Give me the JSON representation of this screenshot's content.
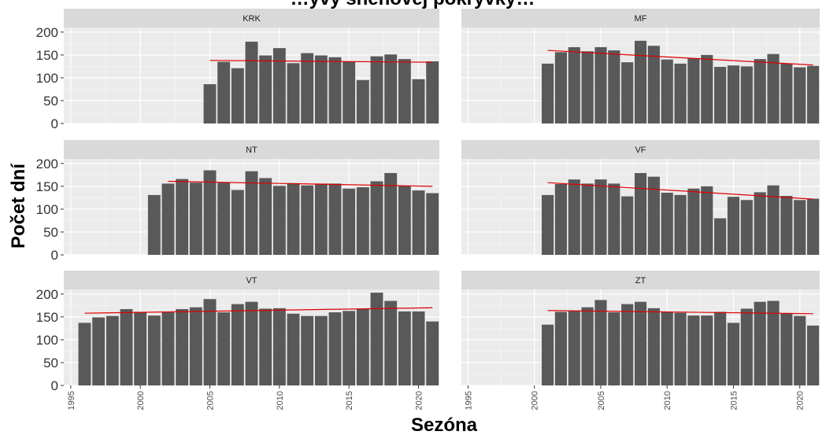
{
  "chart_data": {
    "type": "bar",
    "title": "…yvy snehovej pokrývky…",
    "xlabel": "Sezóna",
    "ylabel": "Počet dní",
    "x_ticks": [
      1995,
      2000,
      2005,
      2010,
      2015,
      2020
    ],
    "y_ticks": [
      0,
      50,
      100,
      150,
      200
    ],
    "xlim": [
      1994.5,
      2021.5
    ],
    "ylim": [
      0,
      210
    ],
    "bar_color": "#595959",
    "trend_color": "#e00000",
    "panel_bg": "#ebebeb",
    "strip_bg": "#d9d9d9",
    "panels": [
      {
        "strip": "KRK",
        "years": [
          2005,
          2006,
          2007,
          2008,
          2009,
          2010,
          2011,
          2012,
          2013,
          2014,
          2015,
          2016,
          2017,
          2018,
          2019,
          2020,
          2021
        ],
        "values": [
          86,
          135,
          121,
          179,
          149,
          165,
          132,
          154,
          149,
          145,
          135,
          95,
          147,
          151,
          141,
          97,
          136
        ],
        "trend": [
          [
            2005,
            138
          ],
          [
            2021,
            134
          ]
        ]
      },
      {
        "strip": "MF",
        "years": [
          2001,
          2002,
          2003,
          2004,
          2005,
          2006,
          2007,
          2008,
          2009,
          2010,
          2011,
          2012,
          2013,
          2014,
          2015,
          2016,
          2017,
          2018,
          2019,
          2020,
          2021
        ],
        "values": [
          131,
          156,
          167,
          158,
          167,
          160,
          134,
          181,
          170,
          140,
          131,
          143,
          150,
          124,
          127,
          125,
          141,
          152,
          131,
          123,
          126
        ],
        "trend": [
          [
            2001,
            160
          ],
          [
            2021,
            128
          ]
        ]
      },
      {
        "strip": "NT",
        "years": [
          2001,
          2002,
          2003,
          2004,
          2005,
          2006,
          2007,
          2008,
          2009,
          2010,
          2011,
          2012,
          2013,
          2014,
          2015,
          2016,
          2017,
          2018,
          2019,
          2020,
          2021
        ],
        "values": [
          131,
          156,
          166,
          158,
          185,
          158,
          142,
          183,
          168,
          151,
          157,
          152,
          156,
          156,
          145,
          148,
          161,
          179,
          151,
          141,
          135
        ],
        "trend": [
          [
            2002,
            161
          ],
          [
            2021,
            150
          ]
        ]
      },
      {
        "strip": "VF",
        "years": [
          2001,
          2002,
          2003,
          2004,
          2005,
          2006,
          2007,
          2008,
          2009,
          2010,
          2011,
          2012,
          2013,
          2014,
          2015,
          2016,
          2017,
          2018,
          2019,
          2020,
          2021
        ],
        "values": [
          131,
          155,
          165,
          156,
          165,
          156,
          128,
          179,
          171,
          136,
          131,
          145,
          150,
          80,
          127,
          120,
          137,
          152,
          129,
          120,
          123
        ],
        "trend": [
          [
            2001,
            158
          ],
          [
            2021,
            122
          ]
        ]
      },
      {
        "strip": "VT",
        "years": [
          1996,
          1997,
          1998,
          1999,
          2000,
          2001,
          2002,
          2003,
          2004,
          2005,
          2006,
          2007,
          2008,
          2009,
          2010,
          2011,
          2012,
          2013,
          2014,
          2015,
          2016,
          2017,
          2018,
          2019,
          2020,
          2021
        ],
        "values": [
          137,
          149,
          152,
          167,
          161,
          153,
          160,
          167,
          171,
          189,
          160,
          178,
          183,
          168,
          169,
          157,
          152,
          152,
          160,
          163,
          168,
          203,
          185,
          162,
          162,
          140
        ],
        "trend": [
          [
            1996,
            158
          ],
          [
            2021,
            170
          ]
        ]
      },
      {
        "strip": "ZT",
        "years": [
          2001,
          2002,
          2003,
          2004,
          2005,
          2006,
          2007,
          2008,
          2009,
          2010,
          2011,
          2012,
          2013,
          2014,
          2015,
          2016,
          2017,
          2018,
          2019,
          2020,
          2021
        ],
        "values": [
          133,
          161,
          164,
          171,
          187,
          160,
          178,
          183,
          169,
          161,
          159,
          153,
          153,
          161,
          137,
          168,
          183,
          185,
          157,
          152,
          131
        ],
        "trend": [
          [
            2001,
            164
          ],
          [
            2021,
            157
          ]
        ]
      }
    ]
  }
}
